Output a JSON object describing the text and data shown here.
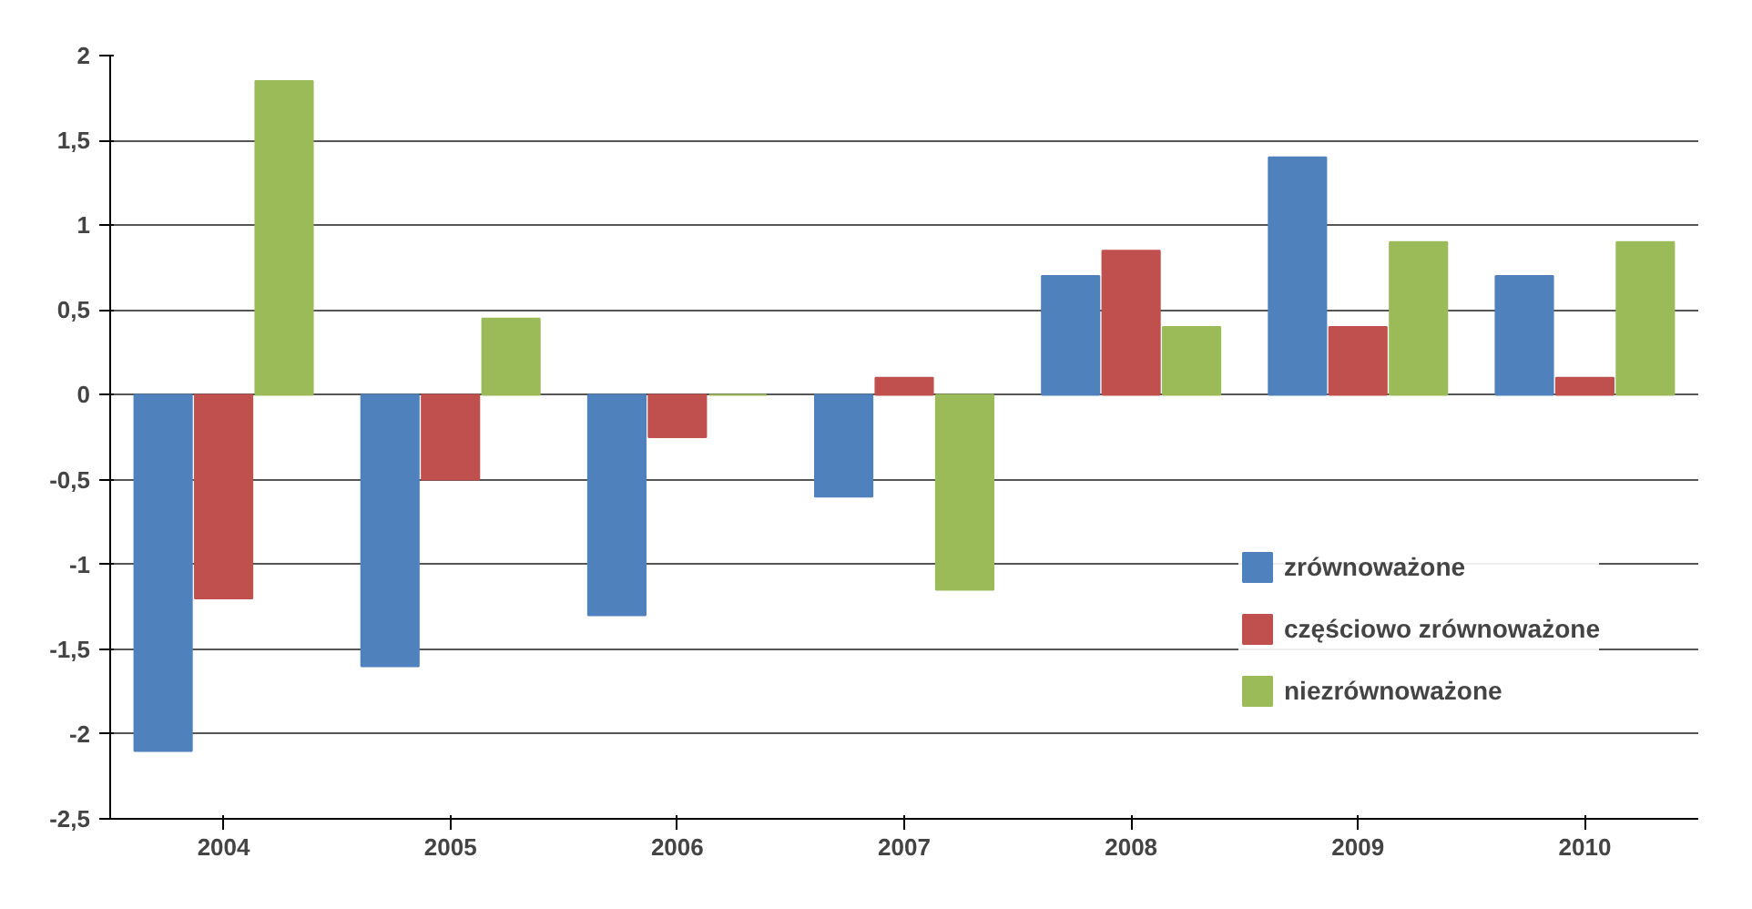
{
  "chart_data": {
    "type": "bar",
    "categories": [
      "2004",
      "2005",
      "2006",
      "2007",
      "2008",
      "2009",
      "2010"
    ],
    "series": [
      {
        "name": "zrównoważone",
        "color": "#4f81bd",
        "values": [
          -2.1,
          -1.6,
          -1.3,
          -0.6,
          0.7,
          1.4,
          0.7
        ]
      },
      {
        "name": "częściowo zrównoważone",
        "color": "#c0504d",
        "values": [
          -1.2,
          -0.5,
          -0.25,
          0.1,
          0.85,
          0.4,
          0.1
        ]
      },
      {
        "name": "niezrównoważone",
        "color": "#9bbb59",
        "values": [
          1.85,
          0.45,
          0,
          -1.15,
          0.4,
          0.9,
          0.9
        ]
      }
    ],
    "ylim": [
      -2.5,
      2
    ],
    "yticks": [
      {
        "value": -2.5,
        "label": "-2,5"
      },
      -2,
      {
        "value": -1.5,
        "label": "-1,5"
      },
      -1,
      {
        "value": -0.5,
        "label": "-0,5"
      },
      0,
      {
        "value": 0.5,
        "label": "0,5"
      },
      1,
      {
        "value": 1.5,
        "label": "1,5"
      },
      2
    ],
    "grid": "y",
    "legend": "right"
  }
}
